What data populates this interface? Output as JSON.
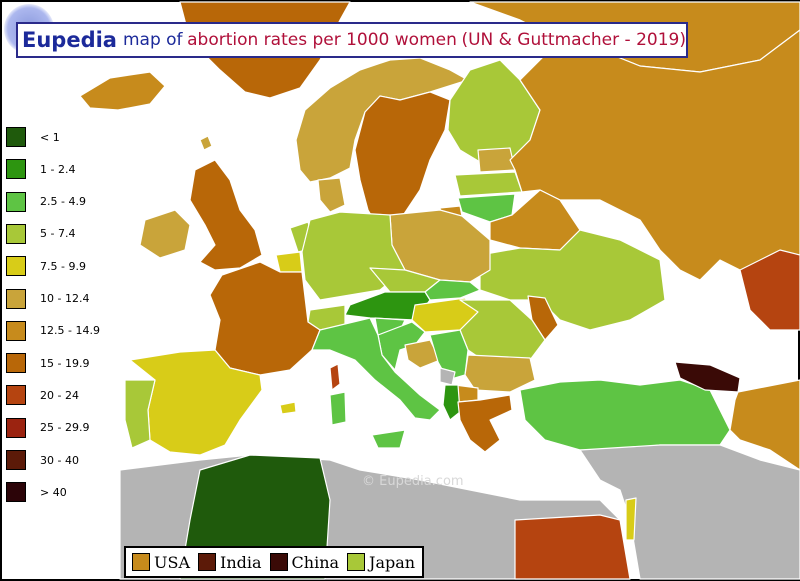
{
  "title": {
    "brand": "Eupedia",
    "part1": "map of",
    "part2": "abortion rates per 1000 women",
    "part3": "(UN & Guttmacher - 2019)"
  },
  "watermark": "© Eupedia.com",
  "legend": [
    {
      "label": "< 1",
      "color": "#1f5a0c"
    },
    {
      "label": "1 - 2.4",
      "color": "#2d9510"
    },
    {
      "label": "2.5 - 4.9",
      "color": "#5ec444"
    },
    {
      "label": "5 - 7.4",
      "color": "#a8c838"
    },
    {
      "label": "7.5 - 9.9",
      "color": "#d8cc18"
    },
    {
      "label": "10 - 12.4",
      "color": "#c9a43a"
    },
    {
      "label": "12.5 - 14.9",
      "color": "#c78b1c"
    },
    {
      "label": "15 - 19.9",
      "color": "#b86708"
    },
    {
      "label": "20 - 24",
      "color": "#b54410"
    },
    {
      "label": "25 - 29.9",
      "color": "#9b2310"
    },
    {
      "label": "30 - 40",
      "color": "#5c1a08"
    },
    {
      "label": "> 40",
      "color": "#2c0408"
    }
  ],
  "comparison": [
    {
      "label": "USA",
      "color": "#c78b1c"
    },
    {
      "label": "India",
      "color": "#5c1a08"
    },
    {
      "label": "China",
      "color": "#3a0a06"
    },
    {
      "label": "Japan",
      "color": "#a8c838"
    }
  ],
  "colors": {
    "sea": "#ffffff",
    "no_data": "#b4b4b4",
    "border": "#ffffff",
    "frame": "#000000"
  }
}
